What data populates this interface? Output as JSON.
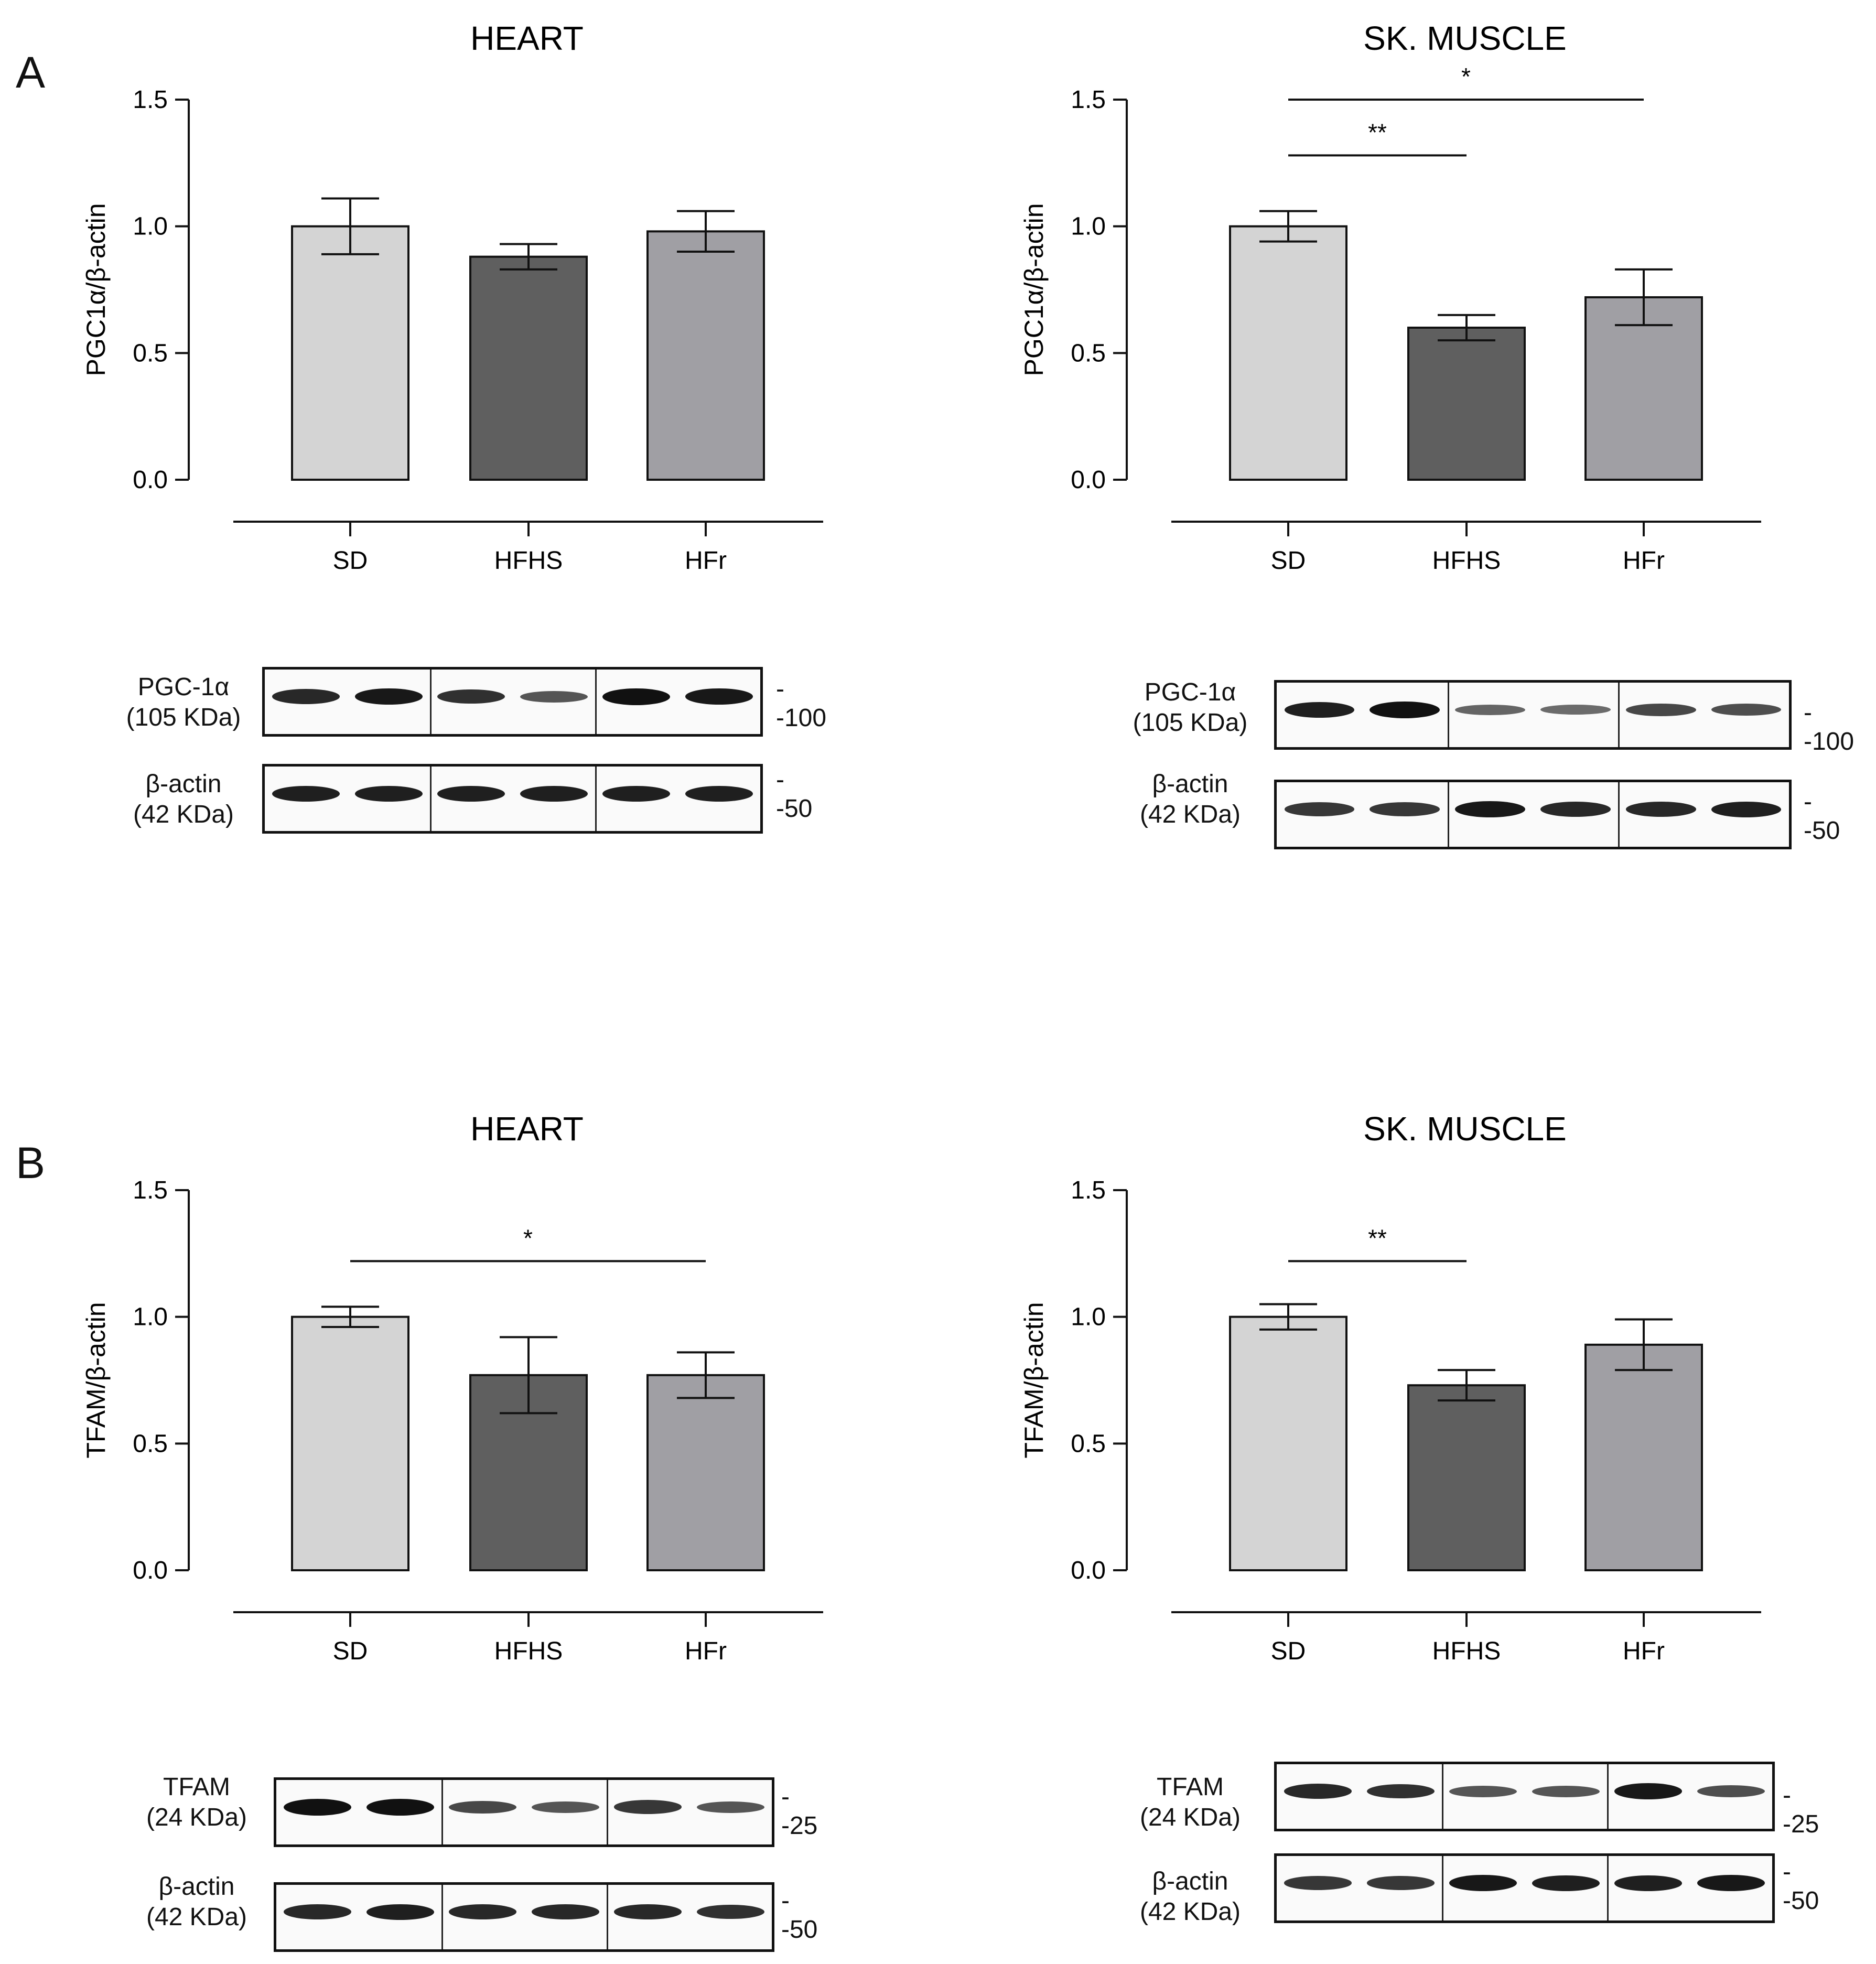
{
  "panels": [
    {
      "letter": "A"
    },
    {
      "letter": "B"
    }
  ],
  "chart_data": [
    {
      "id": "A-heart",
      "type": "bar",
      "title": "HEART",
      "ylabel": "PGC1α/β-actin",
      "xlabel": "",
      "categories": [
        "SD",
        "HFHS",
        "HFr"
      ],
      "values": [
        1.0,
        0.88,
        0.98
      ],
      "errors": [
        0.11,
        0.05,
        0.08
      ],
      "ylim": [
        0,
        1.5
      ],
      "yticks": [
        "0.0",
        "0.5",
        "1.0",
        "1.5"
      ],
      "ytick_values": [
        0,
        0.5,
        1.0,
        1.5
      ],
      "colors": [
        "#d4d4d4",
        "#5f5f5f",
        "#a09fa4"
      ],
      "significance": []
    },
    {
      "id": "A-muscle",
      "type": "bar",
      "title": "SK. MUSCLE",
      "ylabel": "PGC1α/β-actin",
      "xlabel": "",
      "categories": [
        "SD",
        "HFHS",
        "HFr"
      ],
      "values": [
        1.0,
        0.6,
        0.72
      ],
      "errors": [
        0.06,
        0.05,
        0.11
      ],
      "ylim": [
        0,
        1.5
      ],
      "yticks": [
        "0.0",
        "0.5",
        "1.0",
        "1.5"
      ],
      "ytick_values": [
        0,
        0.5,
        1.0,
        1.5
      ],
      "colors": [
        "#d4d4d4",
        "#5f5f5f",
        "#a09fa4"
      ],
      "significance": [
        {
          "from": 0,
          "to": 2,
          "label": "*",
          "level": 1.5
        },
        {
          "from": 0,
          "to": 1,
          "label": "**",
          "level": 1.28
        }
      ]
    },
    {
      "id": "B-heart",
      "type": "bar",
      "title": "HEART",
      "ylabel": "TFAM/β-actin",
      "xlabel": "",
      "categories": [
        "SD",
        "HFHS",
        "HFr"
      ],
      "values": [
        1.0,
        0.77,
        0.77
      ],
      "errors": [
        0.04,
        0.15,
        0.09
      ],
      "ylim": [
        0,
        1.5
      ],
      "yticks": [
        "0.0",
        "0.5",
        "1.0",
        "1.5"
      ],
      "ytick_values": [
        0,
        0.5,
        1.0,
        1.5
      ],
      "colors": [
        "#d4d4d4",
        "#5f5f5f",
        "#a09fa4"
      ],
      "significance": [
        {
          "from": 0,
          "to": 2,
          "label": "*",
          "level": 1.22
        }
      ]
    },
    {
      "id": "B-muscle",
      "type": "bar",
      "title": "SK. MUSCLE",
      "ylabel": "TFAM/β-actin",
      "xlabel": "",
      "categories": [
        "SD",
        "HFHS",
        "HFr"
      ],
      "values": [
        1.0,
        0.73,
        0.89
      ],
      "errors": [
        0.05,
        0.06,
        0.1
      ],
      "ylim": [
        0,
        1.5
      ],
      "yticks": [
        "0.0",
        "0.5",
        "1.0",
        "1.5"
      ],
      "ytick_values": [
        0,
        0.5,
        1.0,
        1.5
      ],
      "colors": [
        "#d4d4d4",
        "#5f5f5f",
        "#a09fa4"
      ],
      "significance": [
        {
          "from": 0,
          "to": 1,
          "label": "**",
          "level": 1.22
        }
      ]
    }
  ],
  "blots": [
    {
      "id": "A-heart-blots",
      "rows": [
        {
          "protein": "PGC-1α",
          "size": "(105 KDa)",
          "marker": "--100",
          "intensity": [
            0.85,
            0.95,
            0.8,
            0.55,
            1.0,
            0.95
          ]
        },
        {
          "protein": "β-actin",
          "size": "(42 KDa)",
          "marker": "--50",
          "intensity": [
            0.9,
            0.9,
            0.9,
            0.9,
            0.9,
            0.9
          ]
        }
      ]
    },
    {
      "id": "A-muscle-blots",
      "rows": [
        {
          "protein": "PGC-1α",
          "size": "(105 KDa)",
          "marker": "--100",
          "intensity": [
            0.9,
            1.0,
            0.45,
            0.4,
            0.65,
            0.6
          ]
        },
        {
          "protein": "β-actin",
          "size": "(42 KDa)",
          "marker": "--50",
          "intensity": [
            0.75,
            0.75,
            0.95,
            0.85,
            0.85,
            0.9
          ]
        }
      ]
    },
    {
      "id": "B-heart-blots",
      "rows": [
        {
          "protein": "TFAM",
          "size": "(24 KDa)",
          "marker": "--25",
          "intensity": [
            1.0,
            1.0,
            0.65,
            0.55,
            0.75,
            0.55
          ]
        },
        {
          "protein": "β-actin",
          "size": "(42 KDa)",
          "marker": "--50",
          "intensity": [
            0.85,
            0.9,
            0.85,
            0.85,
            0.85,
            0.8
          ]
        }
      ]
    },
    {
      "id": "B-muscle-blots",
      "rows": [
        {
          "protein": "TFAM",
          "size": "(24 KDa)",
          "marker": "--25",
          "intensity": [
            0.85,
            0.8,
            0.55,
            0.55,
            0.95,
            0.6
          ]
        },
        {
          "protein": "β-actin",
          "size": "(42 KDa)",
          "marker": "--50",
          "intensity": [
            0.75,
            0.75,
            0.95,
            0.9,
            0.9,
            0.95
          ]
        }
      ]
    }
  ]
}
